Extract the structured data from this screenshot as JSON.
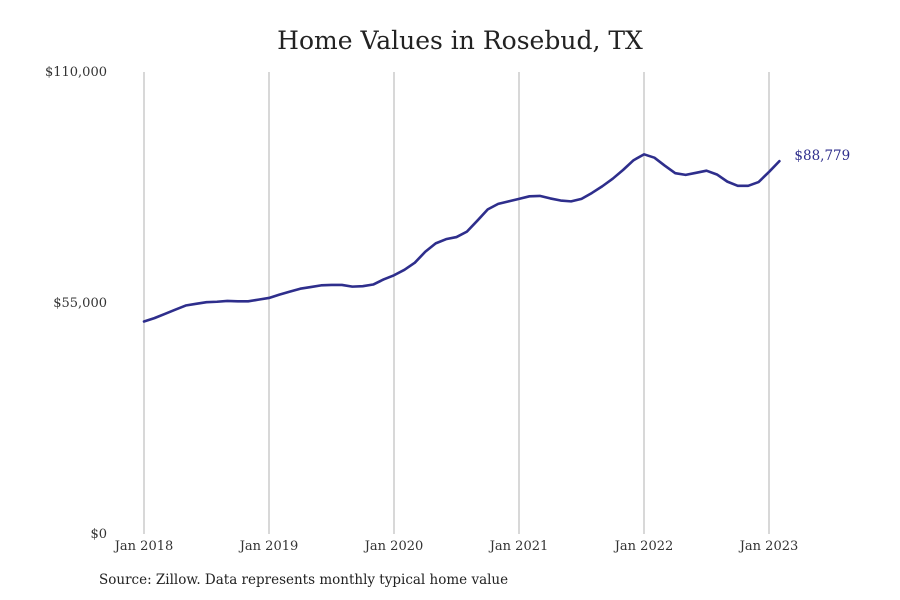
{
  "chart_data": {
    "type": "line",
    "title": "Home Values in Rosebud, TX",
    "xlabel": "",
    "ylabel": "",
    "x_ticks": [
      "Jan 2018",
      "Jan 2019",
      "Jan 2020",
      "Jan 2021",
      "Jan 2022",
      "Jan 2023"
    ],
    "y_ticks": [
      {
        "value": 0,
        "label": "$0"
      },
      {
        "value": 55000,
        "label": "$55,000"
      },
      {
        "value": 110000,
        "label": "$110,000"
      }
    ],
    "ylim": [
      0,
      110000
    ],
    "xlim": [
      "2018-01",
      "2023-02"
    ],
    "grid": "vertical",
    "line_color": "#2e2e8c",
    "end_label": "$88,779",
    "series": [
      {
        "x": [
          "2018-01",
          "2018-02",
          "2018-03",
          "2018-04",
          "2018-05",
          "2018-06",
          "2018-07",
          "2018-08",
          "2018-09",
          "2018-10",
          "2018-11",
          "2018-12",
          "2019-01",
          "2019-02",
          "2019-03",
          "2019-04",
          "2019-05",
          "2019-06",
          "2019-07",
          "2019-08",
          "2019-09",
          "2019-10",
          "2019-11",
          "2019-12",
          "2020-01",
          "2020-02",
          "2020-03",
          "2020-04",
          "2020-05",
          "2020-06",
          "2020-07",
          "2020-08",
          "2020-09",
          "2020-10",
          "2020-11",
          "2020-12",
          "2021-01",
          "2021-02",
          "2021-03",
          "2021-04",
          "2021-05",
          "2021-06",
          "2021-07",
          "2021-08",
          "2021-09",
          "2021-10",
          "2021-11",
          "2021-12",
          "2022-01",
          "2022-02",
          "2022-03",
          "2022-04",
          "2022-05",
          "2022-06",
          "2022-07",
          "2022-08",
          "2022-09",
          "2022-10",
          "2022-11",
          "2022-12",
          "2023-01",
          "2023-02"
        ],
        "values": [
          50600,
          51400,
          52400,
          53400,
          54400,
          54800,
          55200,
          55300,
          55500,
          55400,
          55400,
          55800,
          56200,
          57000,
          57700,
          58400,
          58800,
          59200,
          59300,
          59300,
          58900,
          59000,
          59400,
          60600,
          61600,
          62900,
          64600,
          67200,
          69200,
          70200,
          70700,
          72000,
          74600,
          77300,
          78600,
          79200,
          79800,
          80400,
          80500,
          79900,
          79400,
          79200,
          79800,
          81200,
          82800,
          84600,
          86700,
          89000,
          90400,
          89600,
          87700,
          85900,
          85500,
          86000,
          86500,
          85600,
          83900,
          82900,
          82900,
          83800,
          86200,
          88779
        ]
      }
    ]
  }
}
